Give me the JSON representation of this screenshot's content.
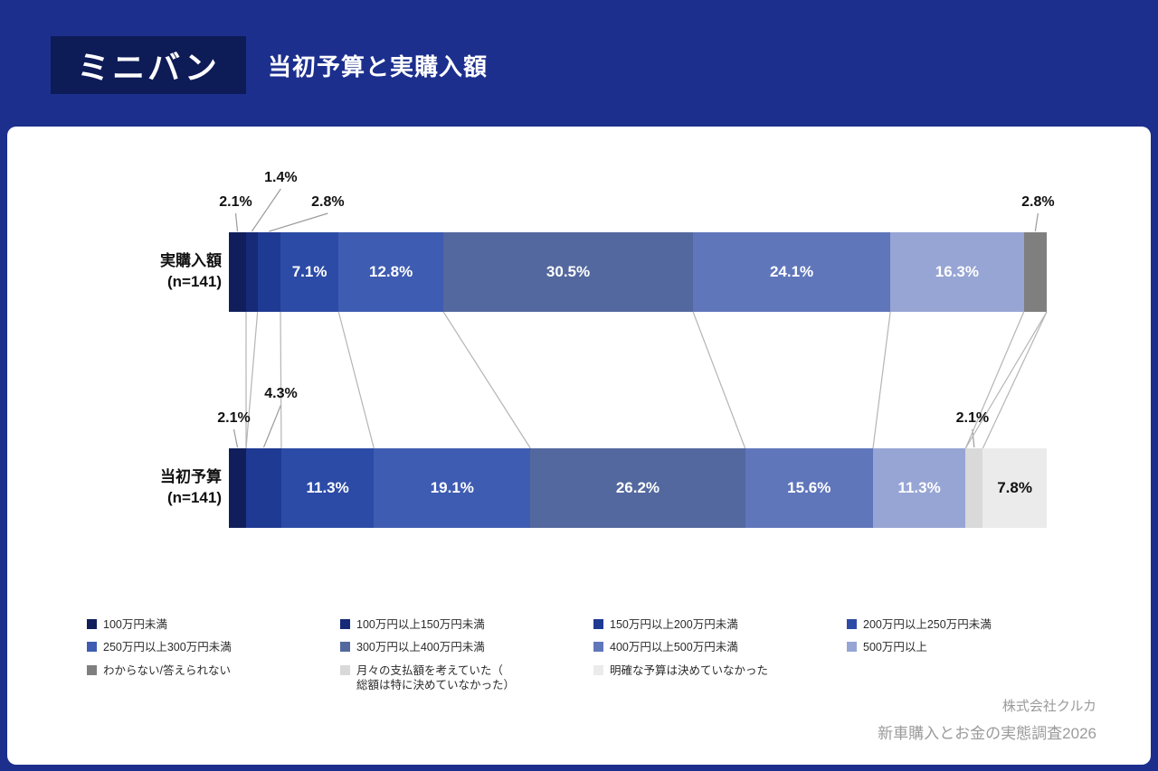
{
  "header": {
    "tag": "ミニバン",
    "title": "当初予算と実購入額"
  },
  "chart_data": {
    "type": "bar",
    "variant": "horizontal-stacked-100pct",
    "title": "当初予算と実購入額",
    "unit": "%",
    "categories": [
      {
        "label": "100万円未満",
        "color": "#101f5c",
        "text_color": "#ffffff"
      },
      {
        "label": "100万円以上150万円未満",
        "color": "#172a78",
        "text_color": "#ffffff"
      },
      {
        "label": "150万円以上200万円未満",
        "color": "#1f3a92",
        "text_color": "#ffffff"
      },
      {
        "label": "200万円以上250万円未満",
        "color": "#2c4ba6",
        "text_color": "#ffffff"
      },
      {
        "label": "250万円以上300万円未満",
        "color": "#3e5cb1",
        "text_color": "#ffffff"
      },
      {
        "label": "300万円以上400万円未満",
        "color": "#53689e",
        "text_color": "#ffffff"
      },
      {
        "label": "400万円以上500万円未満",
        "color": "#6076bb",
        "text_color": "#ffffff"
      },
      {
        "label": "500万円以上",
        "color": "#97a5d5",
        "text_color": "#ffffff"
      },
      {
        "label": "わからない/答えられない",
        "color": "#7f7f7f",
        "text_color": "#ffffff"
      },
      {
        "label": "月々の支払額を考えていた（\n総額は特に決めていなかった）",
        "color": "#d9d9d9",
        "text_color": "#111111"
      },
      {
        "label": "明確な予算は決めていなかった",
        "color": "#ebebeb",
        "text_color": "#111111"
      }
    ],
    "rows": [
      {
        "name": "実購入額",
        "n_label": "(n=141)",
        "segments": [
          {
            "category": 0,
            "value": 2.1,
            "label": "2.1%",
            "label_style": "callout",
            "callout_level": 1,
            "label_shift": -2
          },
          {
            "category": 1,
            "value": 1.4,
            "label": "1.4%",
            "label_style": "callout",
            "callout_level": 2,
            "label_shift": 32
          },
          {
            "category": 2,
            "value": 2.8,
            "label": "2.8%",
            "label_style": "callout",
            "callout_level": 1,
            "label_shift": 65
          },
          {
            "category": 3,
            "value": 7.1,
            "label": "7.1%",
            "label_style": "inside"
          },
          {
            "category": 4,
            "value": 12.8,
            "label": "12.8%",
            "label_style": "inside"
          },
          {
            "category": 5,
            "value": 30.5,
            "label": "30.5%",
            "label_style": "inside"
          },
          {
            "category": 6,
            "value": 24.1,
            "label": "24.1%",
            "label_style": "inside"
          },
          {
            "category": 7,
            "value": 16.3,
            "label": "16.3%",
            "label_style": "inside"
          },
          {
            "category": 8,
            "value": 2.8,
            "label": "2.8%",
            "label_style": "callout",
            "callout_level": 1,
            "label_shift": 3
          }
        ]
      },
      {
        "name": "当初予算",
        "n_label": "(n=141)",
        "segments": [
          {
            "category": 0,
            "value": 2.1,
            "label": "2.1%",
            "label_style": "callout",
            "callout_level": 1,
            "label_shift": -4
          },
          {
            "category": 2,
            "value": 4.3,
            "label": "4.3%",
            "label_style": "callout",
            "callout_level": 2,
            "label_shift": 19
          },
          {
            "category": 3,
            "value": 11.3,
            "label": "11.3%",
            "label_style": "inside"
          },
          {
            "category": 4,
            "value": 19.1,
            "label": "19.1%",
            "label_style": "inside"
          },
          {
            "category": 5,
            "value": 26.2,
            "label": "26.2%",
            "label_style": "inside"
          },
          {
            "category": 6,
            "value": 15.6,
            "label": "15.6%",
            "label_style": "inside"
          },
          {
            "category": 7,
            "value": 11.3,
            "label": "11.3%",
            "label_style": "inside"
          },
          {
            "category": 9,
            "value": 2.1,
            "label": "2.1%",
            "label_style": "callout",
            "callout_level": 1,
            "label_shift": -2
          },
          {
            "category": 10,
            "value": 7.8,
            "label": "7.8%",
            "label_style": "inside"
          }
        ]
      }
    ]
  },
  "footer": {
    "company": "株式会社クルカ",
    "survey": "新車購入とお金の実態調査2026"
  }
}
